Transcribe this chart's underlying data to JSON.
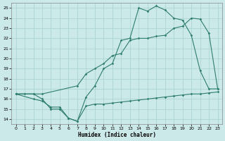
{
  "xlabel": "Humidex (Indice chaleur)",
  "xlim": [
    -0.5,
    23.5
  ],
  "ylim": [
    13.5,
    25.5
  ],
  "xticks": [
    0,
    1,
    2,
    3,
    4,
    5,
    6,
    7,
    8,
    9,
    10,
    11,
    12,
    13,
    14,
    15,
    16,
    17,
    18,
    19,
    20,
    21,
    22,
    23
  ],
  "yticks": [
    14,
    15,
    16,
    17,
    18,
    19,
    20,
    21,
    22,
    23,
    24,
    25
  ],
  "bg_color": "#cce9e9",
  "line_color": "#2e7d6e",
  "grid_color": "#aed4d4",
  "line1_x": [
    0,
    1,
    2,
    3,
    4,
    5,
    6,
    7,
    8,
    9,
    10,
    11,
    12,
    13,
    14,
    15,
    16,
    17,
    18,
    19,
    20,
    21,
    22,
    23
  ],
  "line1_y": [
    16.5,
    16.5,
    16.5,
    16.0,
    15.0,
    15.0,
    14.1,
    13.8,
    16.2,
    17.3,
    19.0,
    19.5,
    21.8,
    22.0,
    25.0,
    24.7,
    25.2,
    24.8,
    24.0,
    23.8,
    22.3,
    18.8,
    17.0,
    17.0
  ],
  "line2_x": [
    0,
    2,
    3,
    7,
    8,
    9,
    10,
    11,
    12,
    13,
    14,
    15,
    16,
    17,
    18,
    19,
    20,
    21,
    22,
    23
  ],
  "line2_y": [
    16.5,
    16.5,
    16.5,
    17.3,
    18.5,
    19.0,
    19.5,
    20.3,
    20.5,
    21.8,
    22.0,
    22.0,
    22.2,
    22.3,
    23.0,
    23.2,
    24.0,
    23.9,
    22.5,
    17.0
  ],
  "line3_x": [
    0,
    2,
    3,
    4,
    5,
    6,
    7,
    8,
    9,
    10,
    11,
    12,
    13,
    14,
    15,
    16,
    17,
    18,
    19,
    20,
    21,
    22,
    23
  ],
  "line3_y": [
    16.5,
    16.0,
    15.8,
    15.2,
    15.2,
    14.1,
    13.8,
    15.3,
    15.5,
    15.5,
    15.6,
    15.7,
    15.8,
    15.9,
    16.0,
    16.1,
    16.2,
    16.3,
    16.4,
    16.5,
    16.5,
    16.6,
    16.7
  ]
}
